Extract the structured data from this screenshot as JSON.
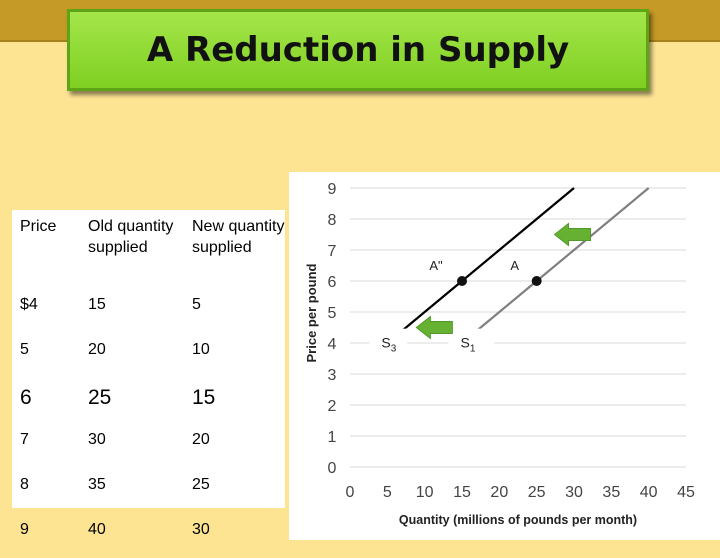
{
  "title": "A Reduction in Supply",
  "table": {
    "headers": [
      "Price",
      "Old quantity supplied",
      "New quantity supplied"
    ],
    "rows": [
      [
        "$4",
        "15",
        "5"
      ],
      [
        "5",
        "20",
        "10"
      ],
      [
        "6",
        "25",
        "15"
      ],
      [
        "7",
        "30",
        "20"
      ],
      [
        "8",
        "35",
        "25"
      ],
      [
        "9",
        "40",
        "30"
      ]
    ]
  },
  "chart_data": {
    "type": "line",
    "xlabel": "Quantity (millions of pounds per month)",
    "ylabel": "Price per pound",
    "xlim": [
      0,
      45
    ],
    "ylim": [
      0,
      9
    ],
    "x_ticks": [
      0,
      5,
      10,
      15,
      20,
      25,
      30,
      35,
      40,
      45
    ],
    "y_ticks": [
      0,
      1,
      2,
      3,
      4,
      5,
      6,
      7,
      8,
      9
    ],
    "grid": true,
    "series": [
      {
        "name": "S3",
        "color": "#000000",
        "points": [
          [
            5,
            4
          ],
          [
            10,
            5
          ],
          [
            15,
            6
          ],
          [
            20,
            7
          ],
          [
            25,
            8
          ],
          [
            30,
            9
          ]
        ]
      },
      {
        "name": "S1",
        "color": "#808080",
        "points": [
          [
            15,
            4
          ],
          [
            20,
            5
          ],
          [
            25,
            6
          ],
          [
            30,
            7
          ],
          [
            35,
            8
          ],
          [
            40,
            9
          ]
        ]
      }
    ],
    "highlighted_points": [
      {
        "label": "A\"",
        "x": 15,
        "y": 6
      },
      {
        "label": "A",
        "x": 25,
        "y": 6
      }
    ],
    "series_labels": [
      {
        "text": "S",
        "sub": "3"
      },
      {
        "text": "S",
        "sub": "1"
      }
    ],
    "arrows": [
      {
        "direction": "left",
        "color": "#66b032",
        "y": 7.5
      },
      {
        "direction": "left",
        "color": "#66b032",
        "y": 4.5
      }
    ]
  }
}
